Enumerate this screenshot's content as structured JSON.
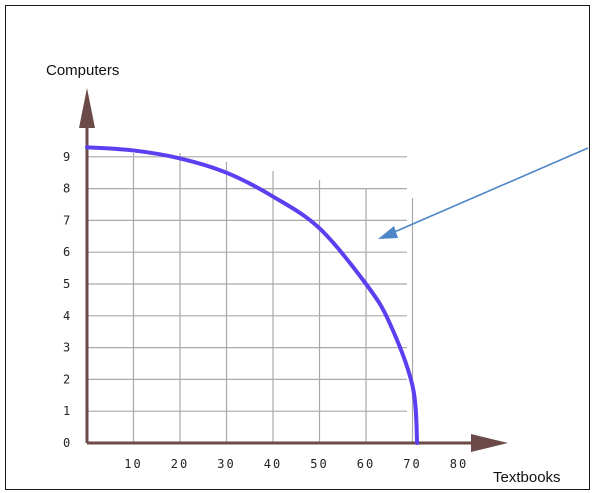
{
  "chart_data": {
    "type": "line",
    "title": "",
    "xlabel": "Textbooks",
    "ylabel": "Computers",
    "x_ticks": [
      "10",
      "20",
      "30",
      "40",
      "50",
      "60",
      "70",
      "80"
    ],
    "y_ticks": [
      "0",
      "1",
      "2",
      "3",
      "4",
      "5",
      "6",
      "7",
      "8",
      "9"
    ],
    "xlim": [
      0,
      80
    ],
    "ylim": [
      0,
      9
    ],
    "grid": true,
    "series": [
      {
        "color": "#5b3ff0",
        "x": [
          0,
          10,
          20,
          30,
          40,
          50,
          60,
          65,
          70,
          71
        ],
        "y": [
          9.3,
          9.2,
          8.95,
          8.5,
          7.75,
          6.75,
          5.0,
          3.8,
          1.8,
          0
        ]
      }
    ],
    "annotations": [
      {
        "type": "arrow",
        "color": "#4d87c7",
        "points_to": "curve"
      }
    ],
    "colors": {
      "axis": "#6b4a47",
      "grid": "#a9a9a9",
      "curve": "#5b3ff0",
      "arrow": "#4d87c7"
    }
  }
}
